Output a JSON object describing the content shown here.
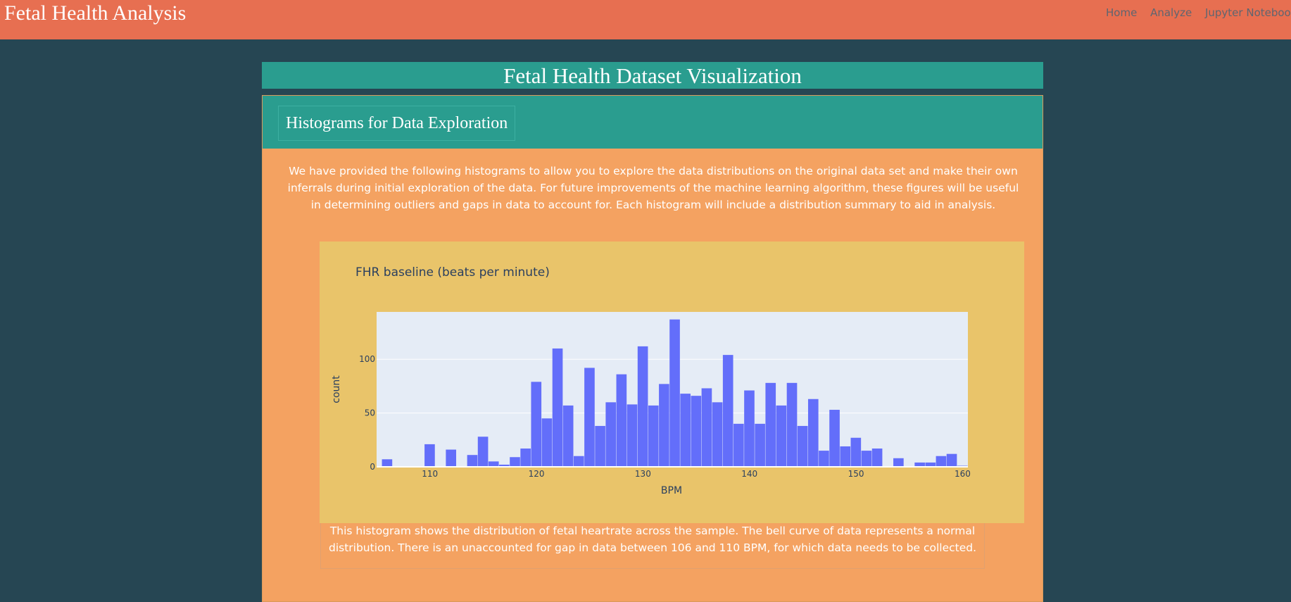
{
  "navbar": {
    "brand": "Fetal Health Analysis",
    "links": [
      "Home",
      "Analyze",
      "Jupyter Notebook"
    ]
  },
  "page": {
    "title": "Fetal Health Dataset Visualization"
  },
  "section": {
    "header": "Histograms for Data Exploration",
    "intro": "We have provided the following histograms to allow you to explore the data distributions on the original data set and make their own inferrals during initial exploration of the data. For future improvements of the machine learning algorithm, these figures will be useful in determining outliers and gaps in data to account for. Each histogram will include a distribution summary to aid in analysis.",
    "caption": "This histogram shows the distribution of fetal heartrate across the sample. The bell curve of data represents a normal distribution. There is an unaccounted for gap in data between 106 and 110 BPM, for which data needs to be collected."
  },
  "colors": {
    "navbar": "#e76f51",
    "background": "#264653",
    "teal": "#2a9d8f",
    "card": "#f4a261",
    "plot_paper": "#e9c46a",
    "plot_bg": "#e5ecf6",
    "bar": "#636efa"
  },
  "chart_data": {
    "type": "bar",
    "title": "FHR baseline (beats per minute)",
    "xlabel": "BPM",
    "ylabel": "count",
    "xlim": [
      105,
      160.5
    ],
    "ylim": [
      0,
      144
    ],
    "xticks": [
      110,
      120,
      130,
      140,
      150,
      160
    ],
    "yticks": [
      0,
      50,
      100
    ],
    "bin_width": 1,
    "grid": true,
    "x": [
      106,
      107,
      108,
      109,
      110,
      111,
      112,
      113,
      114,
      115,
      116,
      117,
      118,
      119,
      120,
      121,
      122,
      123,
      124,
      125,
      126,
      127,
      128,
      129,
      130,
      131,
      132,
      133,
      134,
      135,
      136,
      137,
      138,
      139,
      140,
      141,
      142,
      143,
      144,
      145,
      146,
      147,
      148,
      149,
      150,
      151,
      152,
      153,
      154,
      155,
      156,
      157,
      158,
      159,
      160
    ],
    "values": [
      7,
      0,
      0,
      0,
      21,
      0,
      16,
      0,
      11,
      28,
      5,
      2,
      9,
      17,
      79,
      45,
      110,
      57,
      10,
      92,
      38,
      60,
      86,
      58,
      112,
      57,
      77,
      137,
      68,
      66,
      73,
      60,
      104,
      40,
      71,
      40,
      78,
      57,
      78,
      38,
      63,
      15,
      53,
      19,
      27,
      15,
      17,
      0,
      8,
      0,
      4,
      4,
      10,
      12,
      1
    ]
  }
}
